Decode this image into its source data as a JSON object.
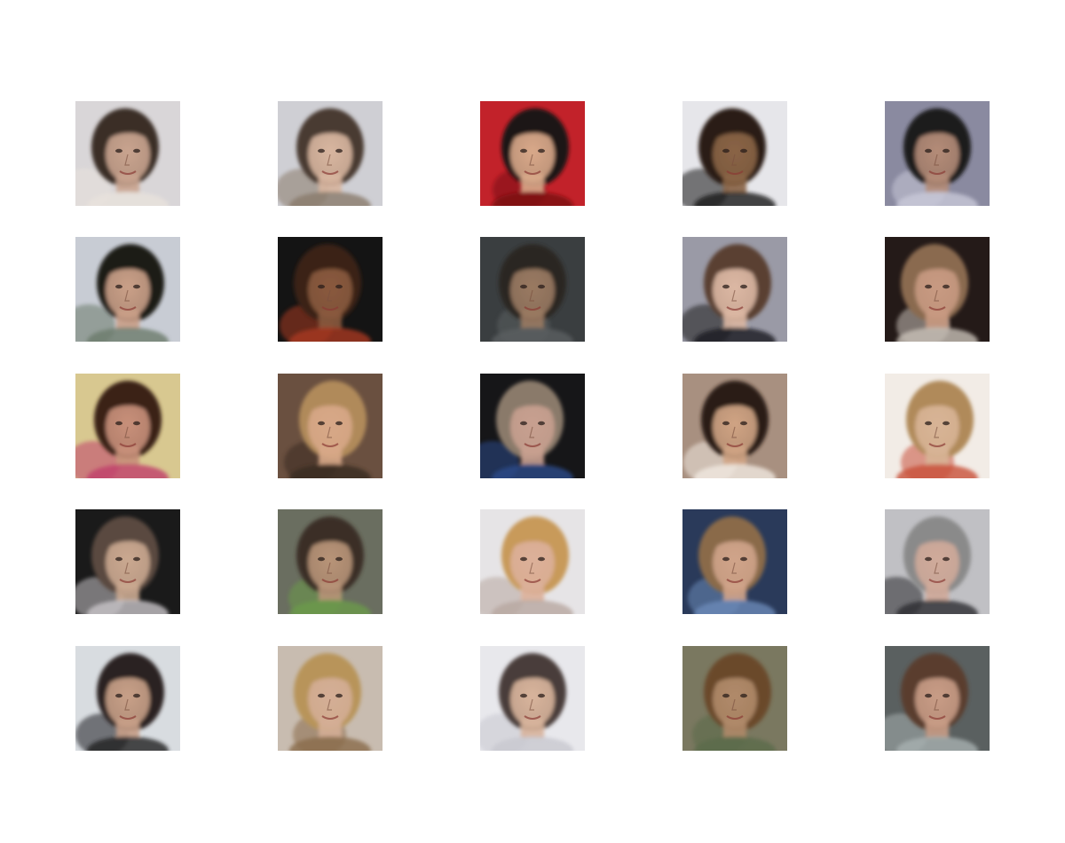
{
  "grid": {
    "rows": 5,
    "cols": 5,
    "tiles": [
      {
        "subject": "face",
        "background": "#d9d6d8",
        "skin": "#c9a48f",
        "hair": "#3a2e28",
        "accent": "#e8e2dc"
      },
      {
        "subject": "face",
        "background": "#cfcfd4",
        "skin": "#d8b6a0",
        "hair": "#4a3a30",
        "accent": "#8a7a6a"
      },
      {
        "subject": "face",
        "background": "#c2222a",
        "skin": "#d9a98a",
        "hair": "#1e1414",
        "accent": "#7a0f14"
      },
      {
        "subject": "face",
        "background": "#e6e6ea",
        "skin": "#8a6446",
        "hair": "#2a1e16",
        "accent": "#181818"
      },
      {
        "subject": "face",
        "background": "#8a8aa0",
        "skin": "#b48c78",
        "hair": "#1c1a1c",
        "accent": "#c8c8d8"
      },
      {
        "subject": "face",
        "background": "#c8ccd4",
        "skin": "#caa088",
        "hair": "#1e1a18",
        "accent": "#6a7a6a"
      },
      {
        "subject": "face",
        "background": "#141414",
        "skin": "#8a5a3e",
        "hair": "#3a2418",
        "accent": "#a83a20"
      },
      {
        "subject": "face",
        "background": "#3a3e40",
        "skin": "#9a7a62",
        "hair": "#2a2622",
        "accent": "#5a5e60"
      },
      {
        "subject": "face",
        "background": "#9a9aa6",
        "skin": "#dcb8a4",
        "hair": "#5a4030",
        "accent": "#1a1a1e"
      },
      {
        "subject": "face",
        "background": "#241a18",
        "skin": "#c89a82",
        "hair": "#8a6a50",
        "accent": "#c8c0b8"
      },
      {
        "subject": "face",
        "background": "#d8c890",
        "skin": "#c8907a",
        "hair": "#3a2018",
        "accent": "#c0406a"
      },
      {
        "subject": "face",
        "background": "#6a5040",
        "skin": "#d8a888",
        "hair": "#b08a5a",
        "accent": "#3a2a20"
      },
      {
        "subject": "face",
        "background": "#161618",
        "skin": "#c8a090",
        "hair": "#8a7a6a",
        "accent": "#2a4a8a"
      },
      {
        "subject": "face",
        "background": "#a89080",
        "skin": "#d0a484",
        "hair": "#2a1e18",
        "accent": "#f0e8e0"
      },
      {
        "subject": "face",
        "background": "#f2ece6",
        "skin": "#d8b496",
        "hair": "#b08a5a",
        "accent": "#c8503a"
      },
      {
        "subject": "face",
        "background": "#1a1a1a",
        "skin": "#caa890",
        "hair": "#5a4a40",
        "accent": "#c8c4c8"
      },
      {
        "subject": "face",
        "background": "#6a6e60",
        "skin": "#b89478",
        "hair": "#3a2e26",
        "accent": "#6a9a4a"
      },
      {
        "subject": "face",
        "background": "#e6e4e6",
        "skin": "#dcb09a",
        "hair": "#c89a5a",
        "accent": "#b8a8a0"
      },
      {
        "subject": "face",
        "background": "#2a3a5a",
        "skin": "#d0a48a",
        "hair": "#8a6a4a",
        "accent": "#6a8ab8"
      },
      {
        "subject": "face",
        "background": "#c0c0c4",
        "skin": "#d0aa9a",
        "hair": "#8a8a8a",
        "accent": "#2a2a2e"
      },
      {
        "subject": "face",
        "background": "#d8dce0",
        "skin": "#c8a088",
        "hair": "#2a2420",
        "accent": "#1e1e22"
      },
      {
        "subject": "face",
        "background": "#c8bcb0",
        "skin": "#d4ae96",
        "hair": "#b8945a",
        "accent": "#8a6a4a"
      },
      {
        "subject": "face",
        "background": "#e8e8ec",
        "skin": "#d8b49c",
        "hair": "#4a3e3a",
        "accent": "#c8c8d0"
      },
      {
        "subject": "face",
        "background": "#7a7860",
        "skin": "#b08a6a",
        "hair": "#6a4a2a",
        "accent": "#5a6a4a"
      },
      {
        "subject": "face",
        "background": "#5a6060",
        "skin": "#c89c86",
        "hair": "#5a3e2e",
        "accent": "#a8b0b0"
      }
    ]
  }
}
